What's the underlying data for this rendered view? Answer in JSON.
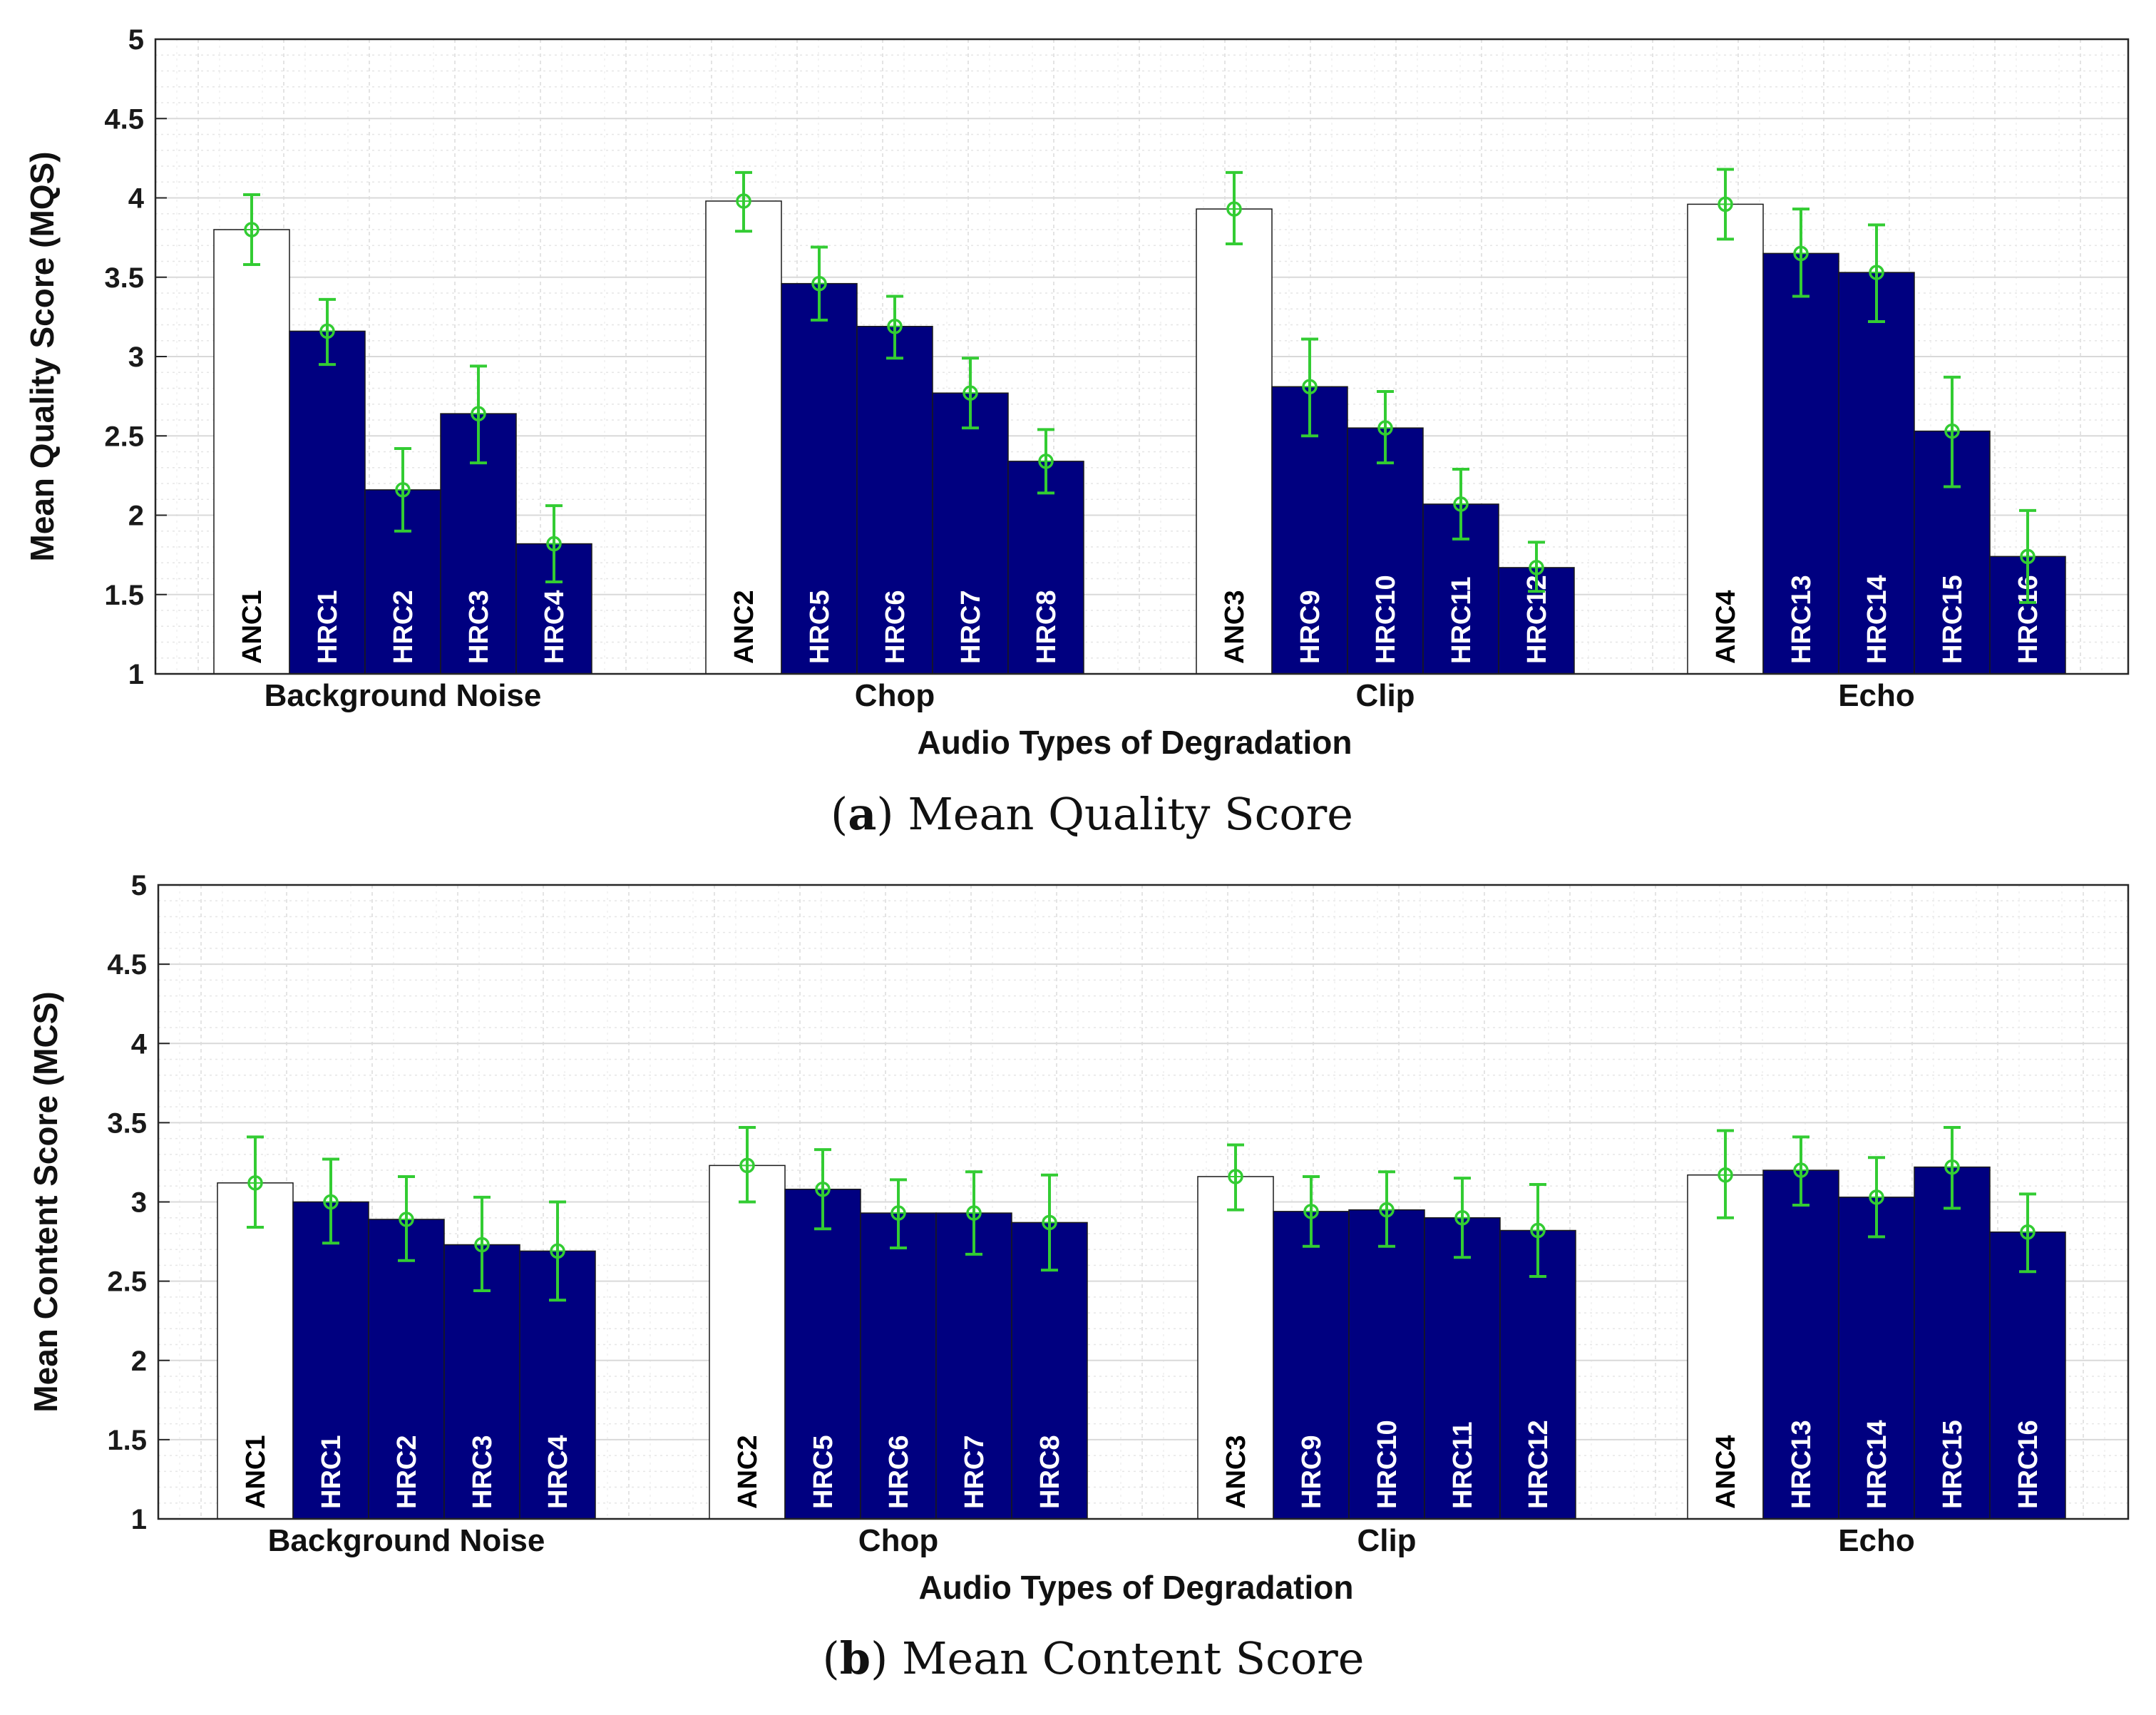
{
  "colors": {
    "anchor_fill": "#ffffff",
    "hrc_fill": "#000080",
    "error_bar": "#33cc33",
    "grid": "#d9d9d9",
    "axis": "#262626",
    "anchor_text": "#000000",
    "hrc_text": "#ffffff"
  },
  "chart_data": [
    {
      "type": "bar",
      "title": "",
      "ylabel": "Mean Quality Score (MQS)",
      "xlabel": "Audio Types of Degradation",
      "ylim": [
        1,
        5
      ],
      "yticks": [
        "1",
        "1.5",
        "2",
        "2.5",
        "3",
        "3.5",
        "4",
        "4.5",
        "5"
      ],
      "grid": true,
      "caption": {
        "paren_open": "(",
        "letter": "a",
        "paren_close": ")",
        "text": " Mean Quality Score"
      },
      "groups": [
        {
          "name": "Background Noise",
          "bars": [
            {
              "label": "ANC1",
              "kind": "anchor",
              "value": 3.8,
              "err_low": 3.58,
              "err_high": 4.02
            },
            {
              "label": "HRC1",
              "kind": "hrc",
              "value": 3.16,
              "err_low": 2.95,
              "err_high": 3.36
            },
            {
              "label": "HRC2",
              "kind": "hrc",
              "value": 2.16,
              "err_low": 1.9,
              "err_high": 2.42
            },
            {
              "label": "HRC3",
              "kind": "hrc",
              "value": 2.64,
              "err_low": 2.33,
              "err_high": 2.94
            },
            {
              "label": "HRC4",
              "kind": "hrc",
              "value": 1.82,
              "err_low": 1.58,
              "err_high": 2.06
            }
          ]
        },
        {
          "name": "Chop",
          "bars": [
            {
              "label": "ANC2",
              "kind": "anchor",
              "value": 3.98,
              "err_low": 3.79,
              "err_high": 4.16
            },
            {
              "label": "HRC5",
              "kind": "hrc",
              "value": 3.46,
              "err_low": 3.23,
              "err_high": 3.69
            },
            {
              "label": "HRC6",
              "kind": "hrc",
              "value": 3.19,
              "err_low": 2.99,
              "err_high": 3.38
            },
            {
              "label": "HRC7",
              "kind": "hrc",
              "value": 2.77,
              "err_low": 2.55,
              "err_high": 2.99
            },
            {
              "label": "HRC8",
              "kind": "hrc",
              "value": 2.34,
              "err_low": 2.14,
              "err_high": 2.54
            }
          ]
        },
        {
          "name": "Clip",
          "bars": [
            {
              "label": "ANC3",
              "kind": "anchor",
              "value": 3.93,
              "err_low": 3.71,
              "err_high": 4.16
            },
            {
              "label": "HRC9",
              "kind": "hrc",
              "value": 2.81,
              "err_low": 2.5,
              "err_high": 3.11
            },
            {
              "label": "HRC10",
              "kind": "hrc",
              "value": 2.55,
              "err_low": 2.33,
              "err_high": 2.78
            },
            {
              "label": "HRC11",
              "kind": "hrc",
              "value": 2.07,
              "err_low": 1.85,
              "err_high": 2.29
            },
            {
              "label": "HRC12",
              "kind": "hrc",
              "value": 1.67,
              "err_low": 1.52,
              "err_high": 1.83
            }
          ]
        },
        {
          "name": "Echo",
          "bars": [
            {
              "label": "ANC4",
              "kind": "anchor",
              "value": 3.96,
              "err_low": 3.74,
              "err_high": 4.18
            },
            {
              "label": "HRC13",
              "kind": "hrc",
              "value": 3.65,
              "err_low": 3.38,
              "err_high": 3.93
            },
            {
              "label": "HRC14",
              "kind": "hrc",
              "value": 3.53,
              "err_low": 3.22,
              "err_high": 3.83
            },
            {
              "label": "HRC15",
              "kind": "hrc",
              "value": 2.53,
              "err_low": 2.18,
              "err_high": 2.87
            },
            {
              "label": "HRC16",
              "kind": "hrc",
              "value": 1.74,
              "err_low": 1.45,
              "err_high": 2.03
            }
          ]
        }
      ]
    },
    {
      "type": "bar",
      "title": "",
      "ylabel": "Mean Content Score (MCS)",
      "xlabel": "Audio Types of Degradation",
      "ylim": [
        1,
        5
      ],
      "yticks": [
        "1",
        "1.5",
        "2",
        "2.5",
        "3",
        "3.5",
        "4",
        "4.5",
        "5"
      ],
      "grid": true,
      "caption": {
        "paren_open": "(",
        "letter": "b",
        "paren_close": ")",
        "text": " Mean Content Score"
      },
      "groups": [
        {
          "name": "Background Noise",
          "bars": [
            {
              "label": "ANC1",
              "kind": "anchor",
              "value": 3.12,
              "err_low": 2.84,
              "err_high": 3.41
            },
            {
              "label": "HRC1",
              "kind": "hrc",
              "value": 3.0,
              "err_low": 2.74,
              "err_high": 3.27
            },
            {
              "label": "HRC2",
              "kind": "hrc",
              "value": 2.89,
              "err_low": 2.63,
              "err_high": 3.16
            },
            {
              "label": "HRC3",
              "kind": "hrc",
              "value": 2.73,
              "err_low": 2.44,
              "err_high": 3.03
            },
            {
              "label": "HRC4",
              "kind": "hrc",
              "value": 2.69,
              "err_low": 2.38,
              "err_high": 3.0
            }
          ]
        },
        {
          "name": "Chop",
          "bars": [
            {
              "label": "ANC2",
              "kind": "anchor",
              "value": 3.23,
              "err_low": 3.0,
              "err_high": 3.47
            },
            {
              "label": "HRC5",
              "kind": "hrc",
              "value": 3.08,
              "err_low": 2.83,
              "err_high": 3.33
            },
            {
              "label": "HRC6",
              "kind": "hrc",
              "value": 2.93,
              "err_low": 2.71,
              "err_high": 3.14
            },
            {
              "label": "HRC7",
              "kind": "hrc",
              "value": 2.93,
              "err_low": 2.67,
              "err_high": 3.19
            },
            {
              "label": "HRC8",
              "kind": "hrc",
              "value": 2.87,
              "err_low": 2.57,
              "err_high": 3.17
            }
          ]
        },
        {
          "name": "Clip",
          "bars": [
            {
              "label": "ANC3",
              "kind": "anchor",
              "value": 3.16,
              "err_low": 2.95,
              "err_high": 3.36
            },
            {
              "label": "HRC9",
              "kind": "hrc",
              "value": 2.94,
              "err_low": 2.72,
              "err_high": 3.16
            },
            {
              "label": "HRC10",
              "kind": "hrc",
              "value": 2.95,
              "err_low": 2.72,
              "err_high": 3.19
            },
            {
              "label": "HRC11",
              "kind": "hrc",
              "value": 2.9,
              "err_low": 2.65,
              "err_high": 3.15
            },
            {
              "label": "HRC12",
              "kind": "hrc",
              "value": 2.82,
              "err_low": 2.53,
              "err_high": 3.11
            }
          ]
        },
        {
          "name": "Echo",
          "bars": [
            {
              "label": "ANC4",
              "kind": "anchor",
              "value": 3.17,
              "err_low": 2.9,
              "err_high": 3.45
            },
            {
              "label": "HRC13",
              "kind": "hrc",
              "value": 3.2,
              "err_low": 2.98,
              "err_high": 3.41
            },
            {
              "label": "HRC14",
              "kind": "hrc",
              "value": 3.03,
              "err_low": 2.78,
              "err_high": 3.28
            },
            {
              "label": "HRC15",
              "kind": "hrc",
              "value": 3.22,
              "err_low": 2.96,
              "err_high": 3.47
            },
            {
              "label": "HRC16",
              "kind": "hrc",
              "value": 2.81,
              "err_low": 2.56,
              "err_high": 3.05
            }
          ]
        }
      ]
    }
  ]
}
